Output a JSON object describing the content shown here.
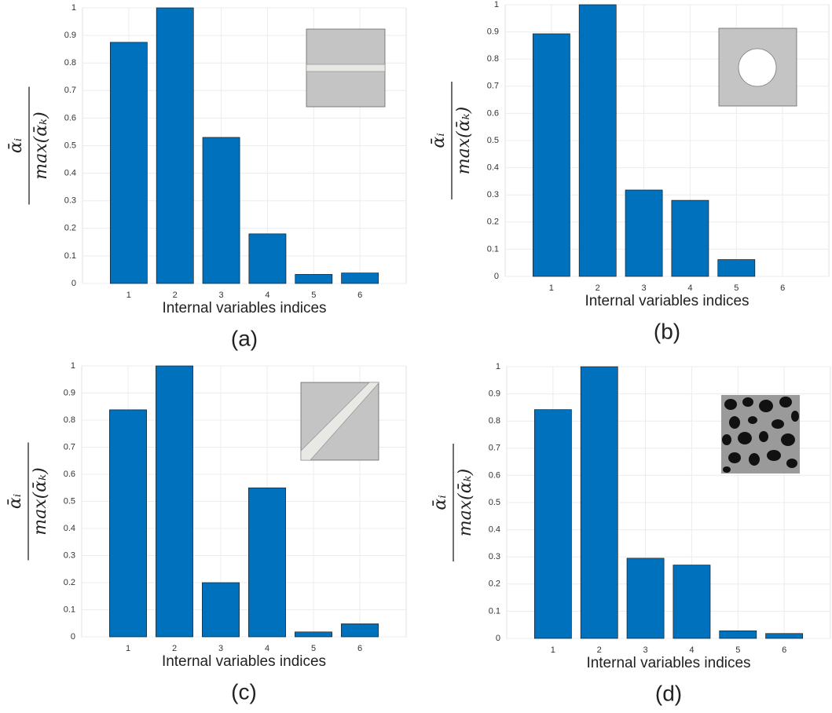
{
  "chart_data": [
    {
      "type": "bar",
      "caption": "(a)",
      "xlabel": "Internal variables indices",
      "ylabel_numerator": "ᾱᵢ",
      "ylabel_denominator": "max(ᾱₖ)",
      "x": [
        1,
        2,
        3,
        4,
        5,
        6
      ],
      "values": [
        0.875,
        1.0,
        0.53,
        0.18,
        0.033,
        0.038
      ],
      "color": "#0072bd",
      "xlim": [
        0,
        7
      ],
      "xticks": [
        1,
        2,
        3,
        4,
        5,
        6
      ],
      "ylim": [
        0,
        1
      ],
      "yticks": [
        0,
        0.1,
        0.2,
        0.3,
        0.4,
        0.5,
        0.6,
        0.7,
        0.8,
        0.9,
        1
      ],
      "grid": true
    },
    {
      "type": "bar",
      "caption": "(b)",
      "xlabel": "Internal variables indices",
      "ylabel_numerator": "ᾱᵢ",
      "ylabel_denominator": "max(ᾱₖ)",
      "x": [
        1,
        2,
        3,
        4,
        5,
        6
      ],
      "values": [
        0.893,
        1.0,
        0.318,
        0.28,
        0.062,
        0
      ],
      "color": "#0072bd",
      "xlim": [
        0,
        7
      ],
      "xticks": [
        1,
        2,
        3,
        4,
        5,
        6
      ],
      "ylim": [
        0,
        1
      ],
      "yticks": [
        0,
        0.1,
        0.2,
        0.3,
        0.4,
        0.5,
        0.6,
        0.7,
        0.8,
        0.9,
        1
      ],
      "grid": true
    },
    {
      "type": "bar",
      "caption": "(c)",
      "xlabel": "Internal variables indices",
      "ylabel_numerator": "ᾱᵢ",
      "ylabel_denominator": "max(ᾱₖ)",
      "x": [
        1,
        2,
        3,
        4,
        5,
        6
      ],
      "values": [
        0.838,
        1.0,
        0.2,
        0.55,
        0.018,
        0.048
      ],
      "color": "#0072bd",
      "xlim": [
        0,
        7
      ],
      "xticks": [
        1,
        2,
        3,
        4,
        5,
        6
      ],
      "ylim": [
        0,
        1
      ],
      "yticks": [
        0,
        0.1,
        0.2,
        0.3,
        0.4,
        0.5,
        0.6,
        0.7,
        0.8,
        0.9,
        1
      ],
      "grid": true
    },
    {
      "type": "bar",
      "caption": "(d)",
      "xlabel": "Internal variables indices",
      "ylabel_numerator": "ᾱᵢ",
      "ylabel_denominator": "max(ᾱₖ)",
      "x": [
        1,
        2,
        3,
        4,
        5,
        6
      ],
      "values": [
        0.842,
        1.0,
        0.295,
        0.27,
        0.028,
        0.018
      ],
      "color": "#0072bd",
      "xlim": [
        0,
        7
      ],
      "xticks": [
        1,
        2,
        3,
        4,
        5,
        6
      ],
      "ylim": [
        0,
        1
      ],
      "yticks": [
        0,
        0.1,
        0.2,
        0.3,
        0.4,
        0.5,
        0.6,
        0.7,
        0.8,
        0.9,
        1
      ],
      "grid": true
    }
  ]
}
